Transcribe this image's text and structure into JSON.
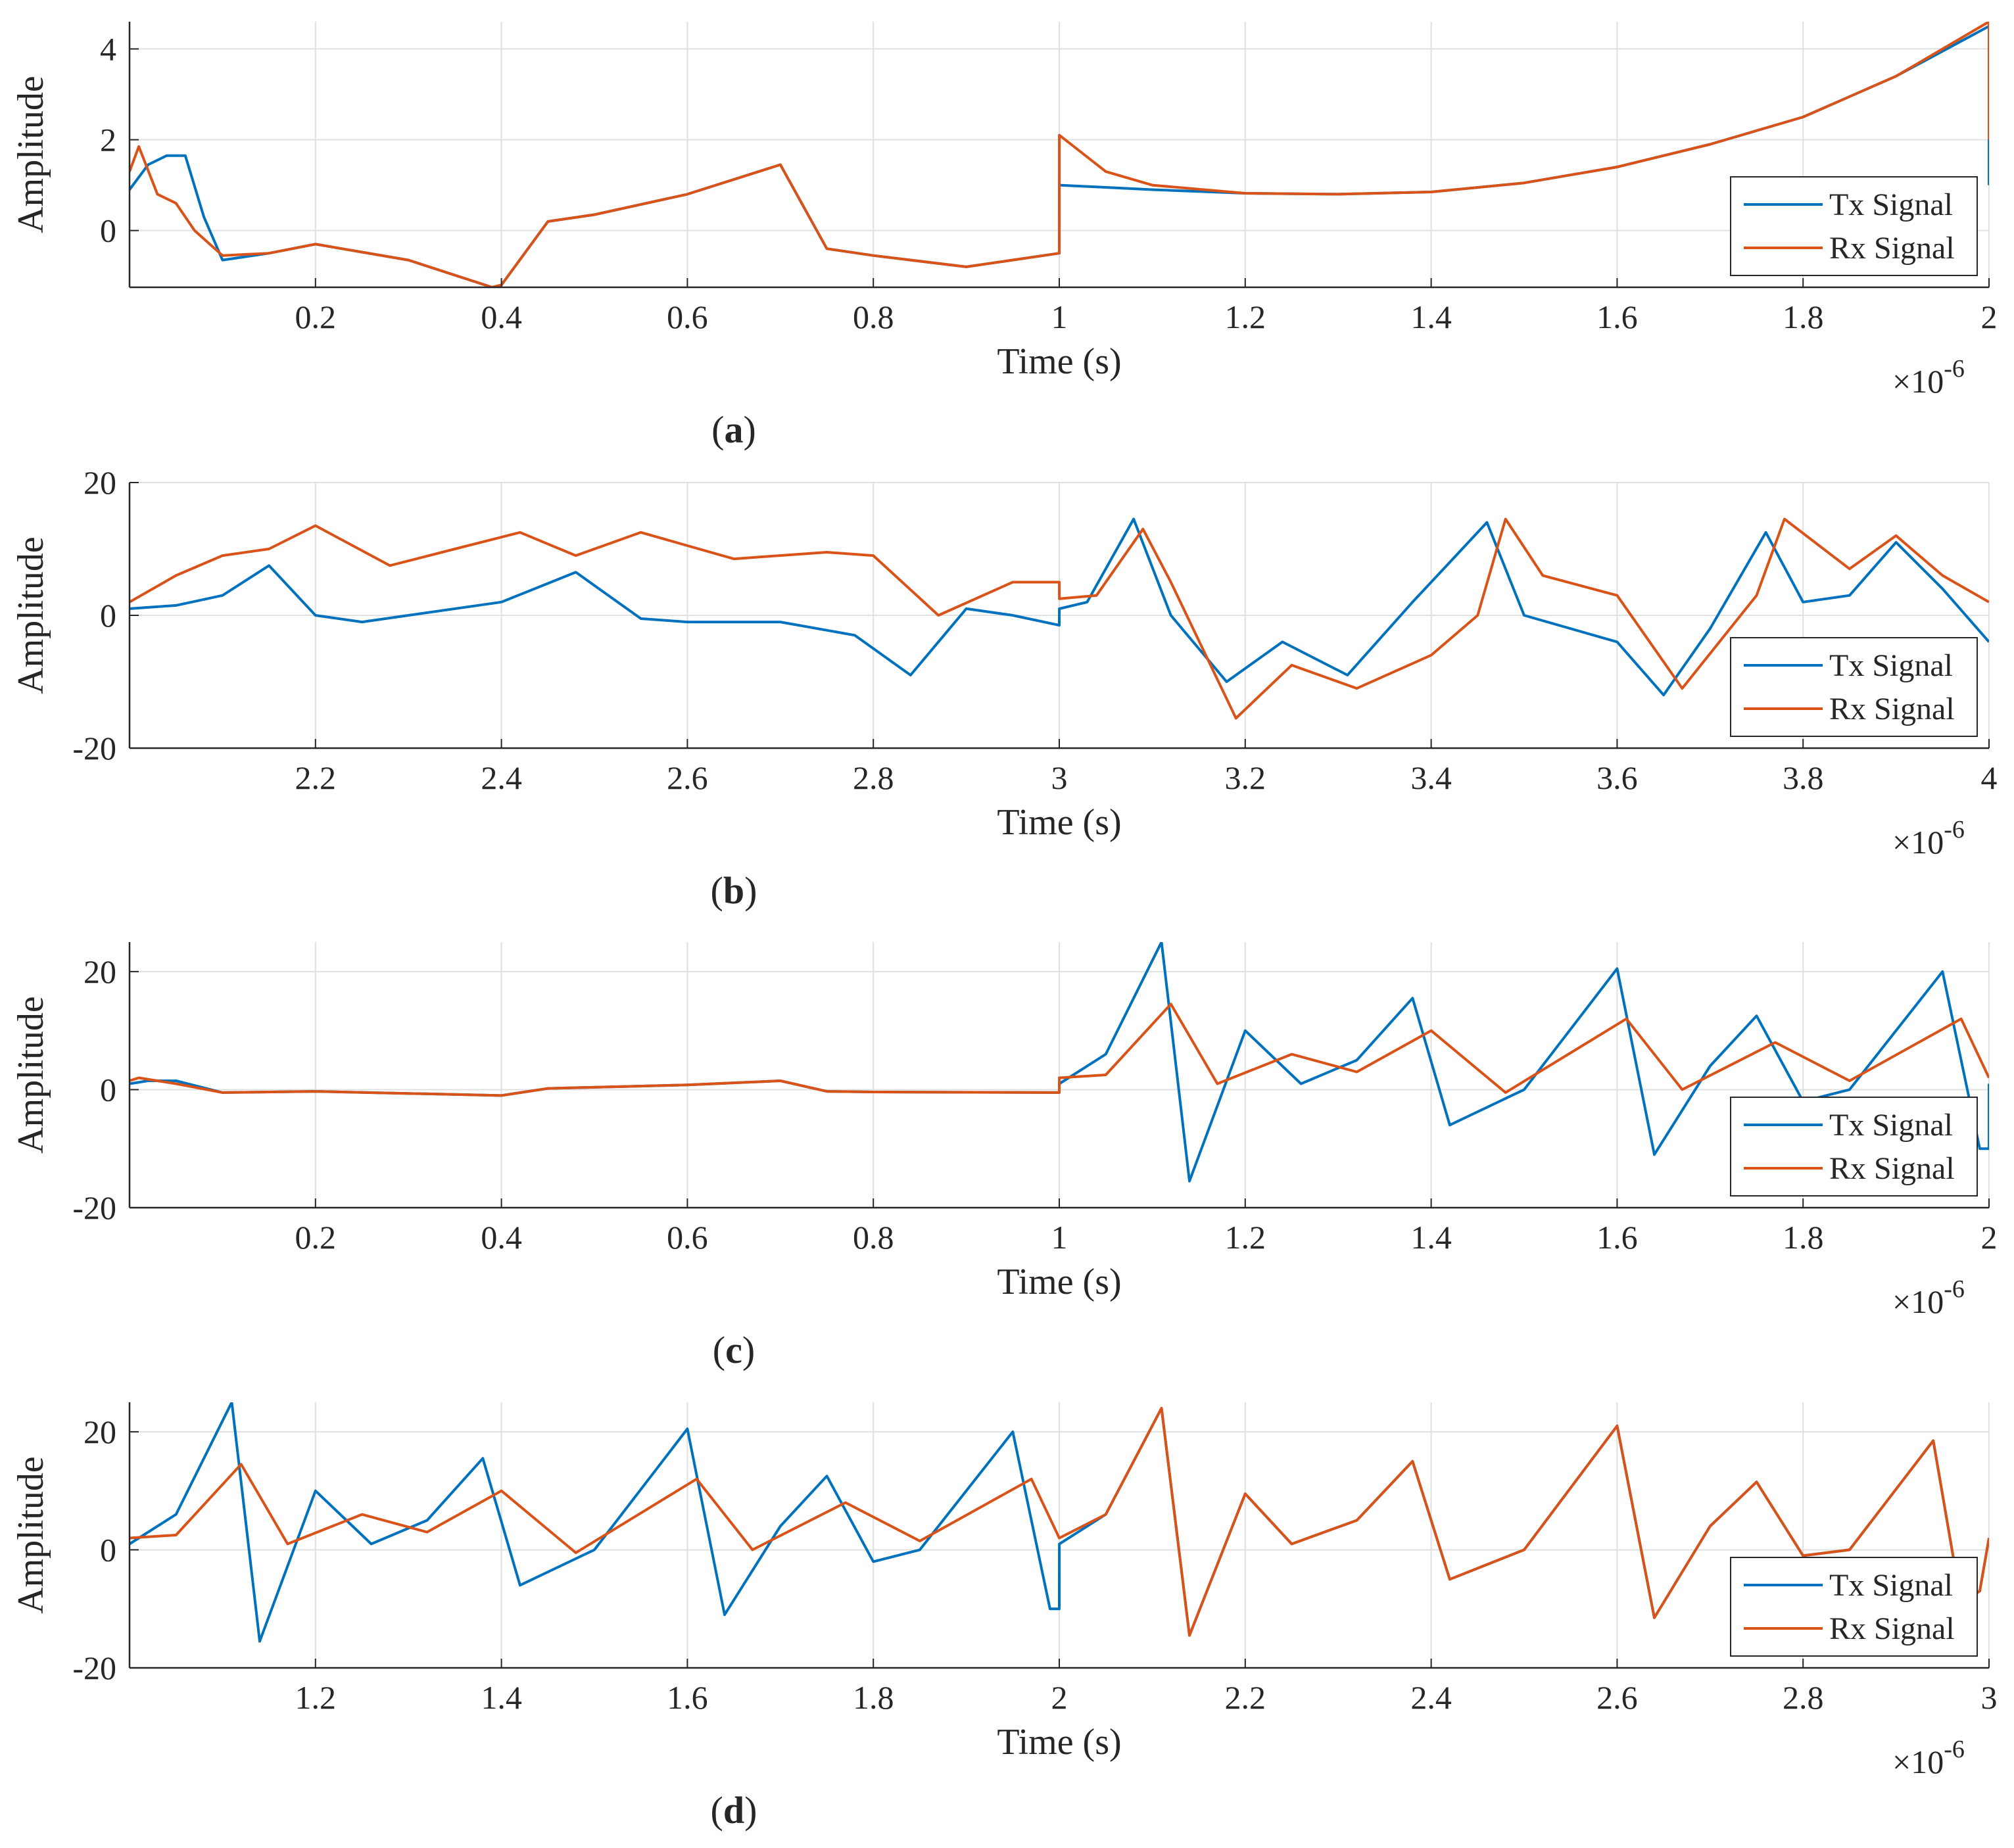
{
  "figure": {
    "legend_labels": [
      "Tx Signal",
      "Rx Signal"
    ],
    "colors": {
      "tx": "#0072BD",
      "rx": "#D95319",
      "grid": "#e0e0e0",
      "axis": "#262626"
    },
    "x_multiplier": "×10",
    "x_exponent": "-6"
  },
  "chart_data": [
    {
      "type": "line",
      "caption_letter": "a",
      "xlabel": "Time (s)",
      "ylabel": "Amplitude",
      "xlim": [
        0,
        2
      ],
      "ylim": [
        -1.25,
        4.6
      ],
      "xticks": [
        0.2,
        0.4,
        0.6,
        0.8,
        1,
        1.2,
        1.4,
        1.6,
        1.8,
        2
      ],
      "xtick_labels": [
        "0.2",
        "0.4",
        "0.6",
        "0.8",
        "1",
        "1.2",
        "1.4",
        "1.6",
        "1.8",
        "2"
      ],
      "yticks": [
        0,
        2,
        4
      ],
      "ytick_labels": [
        "0",
        "2",
        "4"
      ],
      "grid": true,
      "legend_position": "bottom-right",
      "series": [
        {
          "name": "Tx Signal",
          "color": "#0072BD",
          "x": [
            0,
            0.02,
            0.04,
            0.06,
            0.08,
            0.1,
            0.15,
            0.2,
            0.3,
            0.39,
            0.4,
            0.45,
            0.5,
            0.6,
            0.7,
            0.75,
            0.8,
            0.9,
            1,
            1.0001,
            1.1,
            1.2,
            1.3,
            1.4,
            1.5,
            1.6,
            1.7,
            1.8,
            1.9,
            2,
            2
          ],
          "y": [
            0.9,
            1.45,
            1.65,
            1.65,
            0.3,
            -0.65,
            -0.5,
            -0.3,
            -0.65,
            -1.25,
            -1.2,
            0.2,
            0.35,
            0.8,
            1.45,
            -0.4,
            -0.55,
            -0.8,
            -0.5,
            1.0,
            0.9,
            0.82,
            0.8,
            0.85,
            1.05,
            1.4,
            1.9,
            2.5,
            3.4,
            4.5,
            1.0
          ]
        },
        {
          "name": "Rx Signal",
          "color": "#D95319",
          "x": [
            0,
            0.01,
            0.03,
            0.05,
            0.07,
            0.1,
            0.15,
            0.2,
            0.3,
            0.39,
            0.4,
            0.45,
            0.5,
            0.6,
            0.7,
            0.75,
            0.8,
            0.9,
            1,
            1.0001,
            1.05,
            1.1,
            1.2,
            1.3,
            1.4,
            1.5,
            1.6,
            1.7,
            1.8,
            1.9,
            2,
            2
          ],
          "y": [
            1.3,
            1.85,
            0.8,
            0.6,
            0.0,
            -0.55,
            -0.5,
            -0.3,
            -0.65,
            -1.25,
            -1.2,
            0.2,
            0.35,
            0.8,
            1.45,
            -0.4,
            -0.55,
            -0.8,
            -0.5,
            2.1,
            1.3,
            1.0,
            0.82,
            0.8,
            0.85,
            1.05,
            1.4,
            1.9,
            2.5,
            3.4,
            4.6,
            2.0
          ]
        }
      ]
    },
    {
      "type": "line",
      "caption_letter": "b",
      "xlabel": "Time (s)",
      "ylabel": "Amplitude",
      "xlim": [
        2,
        4
      ],
      "ylim": [
        -20,
        20
      ],
      "xticks": [
        2.2,
        2.4,
        2.6,
        2.8,
        3,
        3.2,
        3.4,
        3.6,
        3.8,
        4
      ],
      "xtick_labels": [
        "2.2",
        "2.4",
        "2.6",
        "2.8",
        "3",
        "3.2",
        "3.4",
        "3.6",
        "3.8",
        "4"
      ],
      "yticks": [
        -20,
        0,
        20
      ],
      "ytick_labels": [
        "-20",
        "0",
        "20"
      ],
      "grid": true,
      "legend_position": "bottom-right",
      "series": [
        {
          "name": "Tx Signal",
          "color": "#0072BD",
          "x": [
            2,
            2.05,
            2.1,
            2.15,
            2.2,
            2.25,
            2.3,
            2.4,
            2.48,
            2.55,
            2.6,
            2.7,
            2.78,
            2.84,
            2.9,
            2.95,
            3,
            3.0001,
            3.03,
            3.08,
            3.12,
            3.18,
            3.24,
            3.31,
            3.38,
            3.42,
            3.46,
            3.5,
            3.6,
            3.65,
            3.7,
            3.76,
            3.8,
            3.85,
            3.9,
            3.95,
            4
          ],
          "y": [
            1,
            1.5,
            3,
            7.5,
            0,
            -1,
            0,
            2,
            6.5,
            -0.5,
            -1,
            -1,
            -3,
            -9,
            1,
            0,
            -1.5,
            1.0,
            2,
            14.5,
            0,
            -10,
            -4,
            -9,
            2,
            8,
            14,
            0,
            -4,
            -12,
            -2,
            12.5,
            2,
            3,
            11,
            4,
            -4
          ]
        },
        {
          "name": "Rx Signal",
          "color": "#D95319",
          "x": [
            2,
            2.05,
            2.1,
            2.15,
            2.2,
            2.28,
            2.35,
            2.42,
            2.48,
            2.55,
            2.6,
            2.65,
            2.75,
            2.8,
            2.87,
            2.95,
            3,
            3.0001,
            3.04,
            3.09,
            3.12,
            3.19,
            3.25,
            3.32,
            3.4,
            3.45,
            3.48,
            3.52,
            3.6,
            3.67,
            3.75,
            3.78,
            3.85,
            3.9,
            3.95,
            4
          ],
          "y": [
            2,
            6,
            9,
            10,
            13.5,
            7.5,
            10,
            12.5,
            9,
            12.5,
            10.5,
            8.5,
            9.5,
            9,
            0,
            5,
            5,
            2.5,
            3,
            13,
            5,
            -15.5,
            -7.5,
            -11,
            -6,
            0,
            14.5,
            6,
            3,
            -11,
            3,
            14.5,
            7,
            12,
            6,
            2
          ]
        }
      ]
    },
    {
      "type": "line",
      "caption_letter": "c",
      "xlabel": "Time (s)",
      "ylabel": "Amplitude",
      "xlim": [
        0,
        2
      ],
      "ylim": [
        -20,
        25
      ],
      "xticks": [
        0.2,
        0.4,
        0.6,
        0.8,
        1,
        1.2,
        1.4,
        1.6,
        1.8,
        2
      ],
      "xtick_labels": [
        "0.2",
        "0.4",
        "0.6",
        "0.8",
        "1",
        "1.2",
        "1.4",
        "1.6",
        "1.8",
        "2"
      ],
      "yticks": [
        -20,
        0,
        20
      ],
      "ytick_labels": [
        "-20",
        "0",
        "20"
      ],
      "grid": true,
      "legend_position": "bottom-right",
      "series": [
        {
          "name": "Tx Signal",
          "color": "#0072BD",
          "x": [
            0,
            0.02,
            0.05,
            0.1,
            0.2,
            0.4,
            0.45,
            0.6,
            0.7,
            0.75,
            0.8,
            1,
            1.0001,
            1.05,
            1.11,
            1.14,
            1.2,
            1.26,
            1.32,
            1.38,
            1.42,
            1.5,
            1.6,
            1.64,
            1.7,
            1.75,
            1.8,
            1.85,
            1.95,
            1.99,
            2,
            2
          ],
          "y": [
            1,
            1.5,
            1.5,
            -0.5,
            -0.3,
            -1,
            0.2,
            0.8,
            1.5,
            -0.3,
            -0.4,
            -0.5,
            1,
            6,
            25,
            -15.5,
            10,
            1,
            5,
            15.5,
            -6,
            0,
            20.5,
            -11,
            4,
            12.5,
            -2,
            0,
            20,
            -10,
            -10,
            1
          ]
        },
        {
          "name": "Rx Signal",
          "color": "#D95319",
          "x": [
            0,
            0.01,
            0.05,
            0.1,
            0.2,
            0.4,
            0.45,
            0.6,
            0.7,
            0.75,
            0.8,
            1,
            1.0001,
            1.05,
            1.12,
            1.17,
            1.25,
            1.32,
            1.4,
            1.48,
            1.61,
            1.67,
            1.77,
            1.85,
            1.97,
            2
          ],
          "y": [
            1.5,
            2,
            1,
            -0.5,
            -0.3,
            -1,
            0.2,
            0.8,
            1.5,
            -0.3,
            -0.4,
            -0.5,
            2,
            2.5,
            14.5,
            1,
            6,
            3,
            10,
            -0.5,
            12,
            0,
            8,
            1.5,
            12,
            2
          ]
        }
      ]
    },
    {
      "type": "line",
      "caption_letter": "d",
      "xlabel": "Time (s)",
      "ylabel": "Amplitude",
      "xlim": [
        1,
        3
      ],
      "ylim": [
        -20,
        25
      ],
      "xticks": [
        1.2,
        1.4,
        1.6,
        1.8,
        2,
        2.2,
        2.4,
        2.6,
        2.8,
        3
      ],
      "xtick_labels": [
        "1.2",
        "1.4",
        "1.6",
        "1.8",
        "2",
        "2.2",
        "2.4",
        "2.6",
        "2.8",
        "3"
      ],
      "yticks": [
        -20,
        0,
        20
      ],
      "ytick_labels": [
        "-20",
        "0",
        "20"
      ],
      "grid": true,
      "legend_position": "bottom-right",
      "series": [
        {
          "name": "Tx Signal",
          "color": "#0072BD",
          "x": [
            1,
            1.05,
            1.11,
            1.14,
            1.2,
            1.26,
            1.32,
            1.38,
            1.42,
            1.5,
            1.6,
            1.64,
            1.7,
            1.75,
            1.8,
            1.85,
            1.95,
            1.99,
            2,
            2.0001,
            2.05,
            2.11,
            2.14,
            2.2,
            2.25,
            2.32,
            2.38,
            2.42,
            2.5,
            2.6,
            2.64,
            2.7,
            2.75,
            2.8,
            2.85,
            2.94,
            2.97,
            2.99,
            3
          ],
          "y": [
            1,
            6,
            25,
            -15.5,
            10,
            1,
            5,
            15.5,
            -6,
            0,
            20.5,
            -11,
            4,
            12.5,
            -2,
            0,
            20,
            -10,
            -10,
            1,
            6,
            24,
            -14.5,
            9.5,
            1,
            5,
            15,
            -5,
            0,
            21,
            -11.5,
            4,
            11.5,
            -1,
            0,
            18.5,
            -9,
            -7,
            2
          ]
        },
        {
          "name": "Rx Signal",
          "color": "#D95319",
          "x": [
            1,
            1.05,
            1.12,
            1.17,
            1.25,
            1.32,
            1.4,
            1.48,
            1.61,
            1.67,
            1.77,
            1.85,
            1.97,
            2,
            2.0001,
            2.05,
            2.11,
            2.14,
            2.2,
            2.25,
            2.32,
            2.38,
            2.42,
            2.5,
            2.6,
            2.64,
            2.7,
            2.75,
            2.8,
            2.85,
            2.94,
            2.97,
            2.99,
            3
          ],
          "y": [
            2,
            2.5,
            14.5,
            1,
            6,
            3,
            10,
            -0.5,
            12,
            0,
            8,
            1.5,
            12,
            2,
            2,
            6,
            24,
            -14.5,
            9.5,
            1,
            5,
            15,
            -5,
            0,
            21,
            -11.5,
            4,
            11.5,
            -1,
            0,
            18.5,
            -9,
            -7,
            2
          ]
        }
      ]
    }
  ]
}
